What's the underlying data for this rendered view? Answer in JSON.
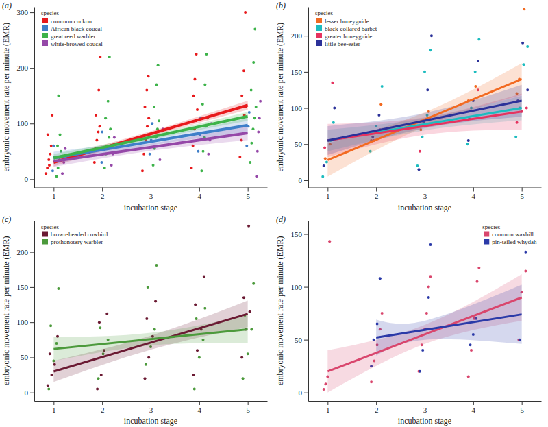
{
  "chart_data": [
    {
      "type": "scatter",
      "panel_label": "(a)",
      "legend_title": "species",
      "legend": "upper left",
      "x_label": "incubation stage",
      "y_label": "embryonic movement rate per minute (EMR)",
      "xlim": [
        0.6,
        5.4
      ],
      "ylim": [
        -15,
        310
      ],
      "xticks": [
        1,
        2,
        3,
        4,
        5
      ],
      "yticks": [
        0,
        100,
        200,
        300
      ],
      "series": [
        {
          "name": "common cuckoo",
          "color": "#e8191c",
          "x": [
            0.84,
            0.87,
            0.9,
            0.93,
            0.95,
            0.88,
            0.97,
            0.91,
            1.84,
            1.86,
            1.89,
            1.92,
            1.95,
            1.87,
            1.93,
            1.96,
            2.83,
            2.86,
            2.9,
            2.93,
            2.96,
            2.88,
            2.92,
            2.95,
            3.84,
            3.87,
            3.9,
            3.93,
            3.96,
            3.88,
            3.91,
            3.94,
            4.84,
            4.87,
            4.9,
            4.93,
            4.96,
            4.88,
            4.92,
            4.95
          ],
          "values": [
            10,
            20,
            35,
            45,
            60,
            80,
            115,
            25,
            30,
            55,
            70,
            85,
            95,
            115,
            160,
            220,
            15,
            45,
            70,
            95,
            110,
            130,
            160,
            185,
            20,
            60,
            90,
            105,
            125,
            150,
            180,
            225,
            40,
            70,
            95,
            115,
            130,
            150,
            195,
            300
          ],
          "fit_x": [
            1,
            3,
            5
          ],
          "fit": [
            30,
            81.5,
            133
          ],
          "fit_lower": [
            23,
            77,
            125
          ],
          "fit_upper": [
            37,
            86,
            141
          ]
        },
        {
          "name": "African black coucal",
          "color": "#3f7fc9",
          "x": [
            0.98,
            1.02,
            1.0,
            1.99,
            2.02,
            2.0,
            2.98,
            3.01,
            3.03,
            3.98,
            4.01,
            4.03,
            4.98,
            5.01,
            5.03
          ],
          "values": [
            15,
            40,
            60,
            30,
            55,
            85,
            45,
            70,
            100,
            50,
            80,
            110,
            60,
            95,
            120
          ],
          "fit_x": [
            1,
            3,
            5
          ],
          "fit": [
            38,
            67.5,
            97
          ],
          "fit_lower": [
            27,
            61,
            84
          ],
          "fit_upper": [
            49,
            74,
            110
          ]
        },
        {
          "name": "great reed warbler",
          "color": "#3db34a",
          "x": [
            1.06,
            1.09,
            1.12,
            1.15,
            1.08,
            1.13,
            1.1,
            2.05,
            2.08,
            2.11,
            2.14,
            2.17,
            2.07,
            2.12,
            2.15,
            3.05,
            3.08,
            3.11,
            3.14,
            3.17,
            3.07,
            3.12,
            3.15,
            4.05,
            4.08,
            4.11,
            4.14,
            4.17,
            4.07,
            4.12,
            4.15,
            5.05,
            5.08,
            5.11,
            5.14,
            5.17,
            5.07,
            5.12,
            5.15
          ],
          "values": [
            5,
            20,
            35,
            50,
            60,
            80,
            150,
            20,
            45,
            60,
            75,
            90,
            110,
            140,
            220,
            25,
            55,
            75,
            90,
            105,
            130,
            170,
            205,
            15,
            50,
            75,
            95,
            110,
            135,
            170,
            225,
            30,
            65,
            90,
            110,
            130,
            160,
            210,
            270
          ],
          "fit_x": [
            1,
            3,
            5
          ],
          "fit": [
            38,
            75.5,
            113
          ],
          "fit_lower": [
            31,
            71,
            105
          ],
          "fit_upper": [
            45,
            80,
            121
          ]
        },
        {
          "name": "white-browed coucal",
          "color": "#9548a8",
          "x": [
            1.18,
            1.21,
            1.24,
            2.19,
            2.22,
            2.25,
            3.19,
            3.22,
            3.25,
            4.19,
            4.22,
            4.25,
            5.18,
            5.2,
            5.22,
            5.24,
            5.26
          ],
          "values": [
            10,
            30,
            55,
            25,
            45,
            75,
            35,
            60,
            90,
            45,
            70,
            100,
            5,
            50,
            85,
            110,
            140
          ],
          "fit_x": [
            1,
            3,
            5
          ],
          "fit": [
            32,
            57.5,
            83
          ],
          "fit_lower": [
            22,
            51,
            70
          ],
          "fit_upper": [
            42,
            64,
            96
          ]
        }
      ]
    },
    {
      "type": "scatter",
      "panel_label": "(b)",
      "legend_title": "species",
      "legend": "upper left",
      "x_label": "incubation stage",
      "y_label": "embryonic movement rate per minute (EMR)",
      "xlim": [
        0.6,
        5.4
      ],
      "ylim": [
        -10,
        240
      ],
      "xticks": [
        1,
        2,
        3,
        4,
        5
      ],
      "yticks": [
        0,
        50,
        100,
        150,
        200
      ],
      "series": [
        {
          "name": "lesser honeyguide",
          "color": "#f26a21",
          "x": [
            0.95,
            1.05,
            1.9,
            2.1,
            2.92,
            3.08,
            3.9,
            4.05,
            4.95,
            5.05,
            4.9
          ],
          "values": [
            30,
            50,
            55,
            105,
            70,
            95,
            110,
            130,
            140,
            237,
            120
          ],
          "fit_x": [
            1,
            3,
            5
          ],
          "fit": [
            28,
            84,
            140
          ],
          "fit_lower": [
            5,
            74,
            118
          ],
          "fit_upper": [
            51,
            94,
            162
          ]
        },
        {
          "name": "black-collared barbet",
          "color": "#1cbcbf",
          "x": [
            0.9,
            0.98,
            1.06,
            1.12,
            1.88,
            2.0,
            2.12,
            2.85,
            2.95,
            3.05,
            3.12,
            3.0,
            3.88,
            3.96,
            4.04,
            4.12,
            4.88,
            4.96,
            5.04,
            5.12
          ],
          "values": [
            5,
            25,
            55,
            80,
            40,
            75,
            130,
            20,
            60,
            90,
            180,
            150,
            50,
            100,
            150,
            195,
            60,
            100,
            160,
            185
          ],
          "fit_x": [
            1,
            3,
            5
          ],
          "fit": [
            55,
            77.5,
            100
          ],
          "fit_lower": [
            40,
            69,
            83
          ],
          "fit_upper": [
            70,
            86,
            117
          ]
        },
        {
          "name": "greater honeyguide",
          "color": "#e6335f",
          "x": [
            0.94,
            1.1,
            1.95,
            2.08,
            2.9,
            3.1,
            3.92,
            4.1,
            4.9,
            5.0,
            5.1
          ],
          "values": [
            45,
            135,
            55,
            70,
            40,
            85,
            85,
            125,
            80,
            95,
            100
          ],
          "fit_x": [
            1,
            3,
            5
          ],
          "fit": [
            55,
            75,
            95
          ],
          "fit_lower": [
            32,
            63,
            70
          ],
          "fit_upper": [
            78,
            87,
            120
          ]
        },
        {
          "name": "little bee-eater",
          "color": "#2b3199",
          "x": [
            0.92,
            1.02,
            1.14,
            1.93,
            2.06,
            2.88,
            2.98,
            3.06,
            3.14,
            3.9,
            4.0,
            4.1,
            4.92,
            5.02,
            5.12
          ],
          "values": [
            20,
            55,
            100,
            60,
            90,
            15,
            80,
            125,
            200,
            55,
            110,
            165,
            110,
            190,
            125
          ],
          "fit_x": [
            1,
            3,
            5
          ],
          "fit": [
            55,
            82.5,
            110
          ],
          "fit_lower": [
            35,
            72,
            88
          ],
          "fit_upper": [
            75,
            93,
            132
          ]
        }
      ]
    },
    {
      "type": "scatter",
      "panel_label": "(c)",
      "legend_title": "species",
      "legend": "upper left",
      "x_label": "incubation stage",
      "y_label": "embryonic movement rate per minute (EMR)",
      "xlim": [
        0.6,
        5.4
      ],
      "ylim": [
        -12,
        245
      ],
      "xticks": [
        1,
        2,
        3,
        4,
        5
      ],
      "yticks": [
        0,
        50,
        100,
        150,
        200
      ],
      "series": [
        {
          "name": "brown-headed cowbird",
          "color": "#6b1a33",
          "x": [
            0.88,
            0.96,
            1.02,
            0.92,
            1.08,
            1.9,
            1.98,
            2.04,
            1.94,
            2.1,
            2.88,
            2.96,
            3.04,
            2.92,
            3.1,
            3.88,
            3.96,
            4.04,
            3.92,
            4.1,
            4.88,
            4.96,
            5.04,
            4.92,
            5.02
          ],
          "values": [
            10,
            25,
            40,
            55,
            80,
            5,
            25,
            60,
            100,
            112,
            20,
            50,
            80,
            105,
            130,
            25,
            60,
            90,
            125,
            165,
            50,
            90,
            115,
            135,
            237
          ],
          "fit_x": [
            1,
            3,
            5
          ],
          "fit": [
            30,
            71,
            112
          ],
          "fit_lower": [
            15,
            61,
            93
          ],
          "fit_upper": [
            45,
            81,
            131
          ]
        },
        {
          "name": "prothonotary warbler",
          "color": "#4c9a3c",
          "x": [
            0.9,
            1.0,
            1.06,
            0.94,
            1.1,
            1.92,
            2.02,
            2.12,
            1.96,
            2.9,
            3.0,
            3.08,
            2.94,
            3.12,
            3.9,
            4.0,
            4.08,
            3.94,
            4.12,
            4.9,
            5.0,
            5.08,
            4.94,
            5.12
          ],
          "values": [
            5,
            45,
            70,
            95,
            148,
            20,
            55,
            75,
            92,
            40,
            65,
            90,
            150,
            181,
            5,
            50,
            75,
            105,
            120,
            20,
            55,
            90,
            110,
            155
          ],
          "fit_x": [
            1,
            3,
            5
          ],
          "fit": [
            62,
            76,
            90
          ],
          "fit_lower": [
            45,
            67,
            70
          ],
          "fit_upper": [
            79,
            85,
            110
          ]
        }
      ]
    },
    {
      "type": "scatter",
      "panel_label": "(d)",
      "legend_title": "species",
      "legend": "upper right",
      "x_label": "incubation stage",
      "y_label": "embryonic movement rate per minute (EMR)",
      "xlim": [
        0.6,
        5.4
      ],
      "ylim": [
        -8,
        163
      ],
      "xticks": [
        1,
        2,
        3,
        4,
        5
      ],
      "yticks": [
        0,
        50,
        100,
        150
      ],
      "series": [
        {
          "name": "common waxbill",
          "color": "#d9466d",
          "x": [
            0.92,
            0.96,
            1.0,
            1.04,
            1.9,
            1.96,
            2.02,
            2.08,
            2.12,
            2.88,
            2.94,
            3.0,
            3.04,
            3.08,
            3.12,
            3.9,
            3.96,
            4.02,
            4.08,
            4.12,
            4.94,
            5.0,
            5.08
          ],
          "values": [
            3,
            8,
            15,
            143,
            10,
            30,
            45,
            60,
            75,
            20,
            45,
            60,
            75,
            100,
            110,
            15,
            40,
            70,
            105,
            118,
            50,
            95,
            115
          ],
          "fit_x": [
            1,
            3,
            5
          ],
          "fit": [
            20,
            55,
            90
          ],
          "fit_lower": [
            0,
            46,
            68
          ],
          "fit_upper": [
            40,
            64,
            112
          ]
        },
        {
          "name": "pin-tailed whydah",
          "color": "#2b3aa8",
          "x": [
            1.95,
            2.02,
            2.08,
            1.9,
            2.9,
            2.96,
            3.02,
            3.08,
            3.12,
            3.94,
            4.0,
            4.06,
            4.96,
            5.08
          ],
          "values": [
            50,
            65,
            108,
            25,
            20,
            40,
            60,
            90,
            140,
            45,
            55,
            70,
            50,
            133
          ],
          "fit_x": [
            2,
            3,
            5
          ],
          "fit": [
            52,
            59.3,
            74
          ],
          "fit_lower": [
            35,
            50,
            46
          ],
          "fit_upper": [
            69,
            68,
            102
          ]
        }
      ]
    }
  ]
}
